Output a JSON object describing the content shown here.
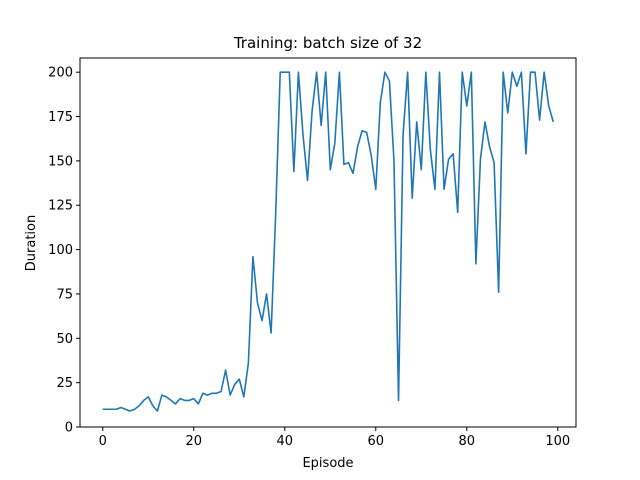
{
  "chart_data": {
    "type": "line",
    "title": "Training: batch size of 32",
    "xlabel": "Episode",
    "ylabel": "Duration",
    "xlim": [
      -5,
      104
    ],
    "ylim": [
      0,
      208
    ],
    "xticks": [
      0,
      20,
      40,
      60,
      80,
      100
    ],
    "yticks": [
      0,
      25,
      50,
      75,
      100,
      125,
      150,
      175,
      200
    ],
    "grid": false,
    "line_color": "#1f77b4",
    "series": [
      {
        "values": [
          10,
          10,
          10,
          10,
          11,
          10,
          9,
          10,
          12,
          15,
          17,
          12,
          9,
          18,
          17,
          15,
          13,
          16,
          15,
          15,
          16,
          13,
          19,
          18,
          19,
          19,
          20,
          32,
          18,
          24,
          27,
          17,
          36,
          96,
          70,
          60,
          75,
          53,
          120,
          200,
          200,
          200,
          144,
          200,
          165,
          139,
          178,
          200,
          170,
          200,
          145,
          160,
          200,
          148,
          149,
          143,
          158,
          167,
          166,
          153,
          134,
          183,
          200,
          195,
          150,
          15,
          165,
          200,
          129,
          172,
          145,
          200,
          156,
          134,
          200,
          134,
          151,
          154,
          121,
          200,
          181,
          200,
          92,
          151,
          172,
          158,
          149,
          76,
          200,
          177,
          200,
          192,
          200,
          154,
          200,
          200,
          173,
          200,
          181,
          172
        ]
      }
    ]
  }
}
